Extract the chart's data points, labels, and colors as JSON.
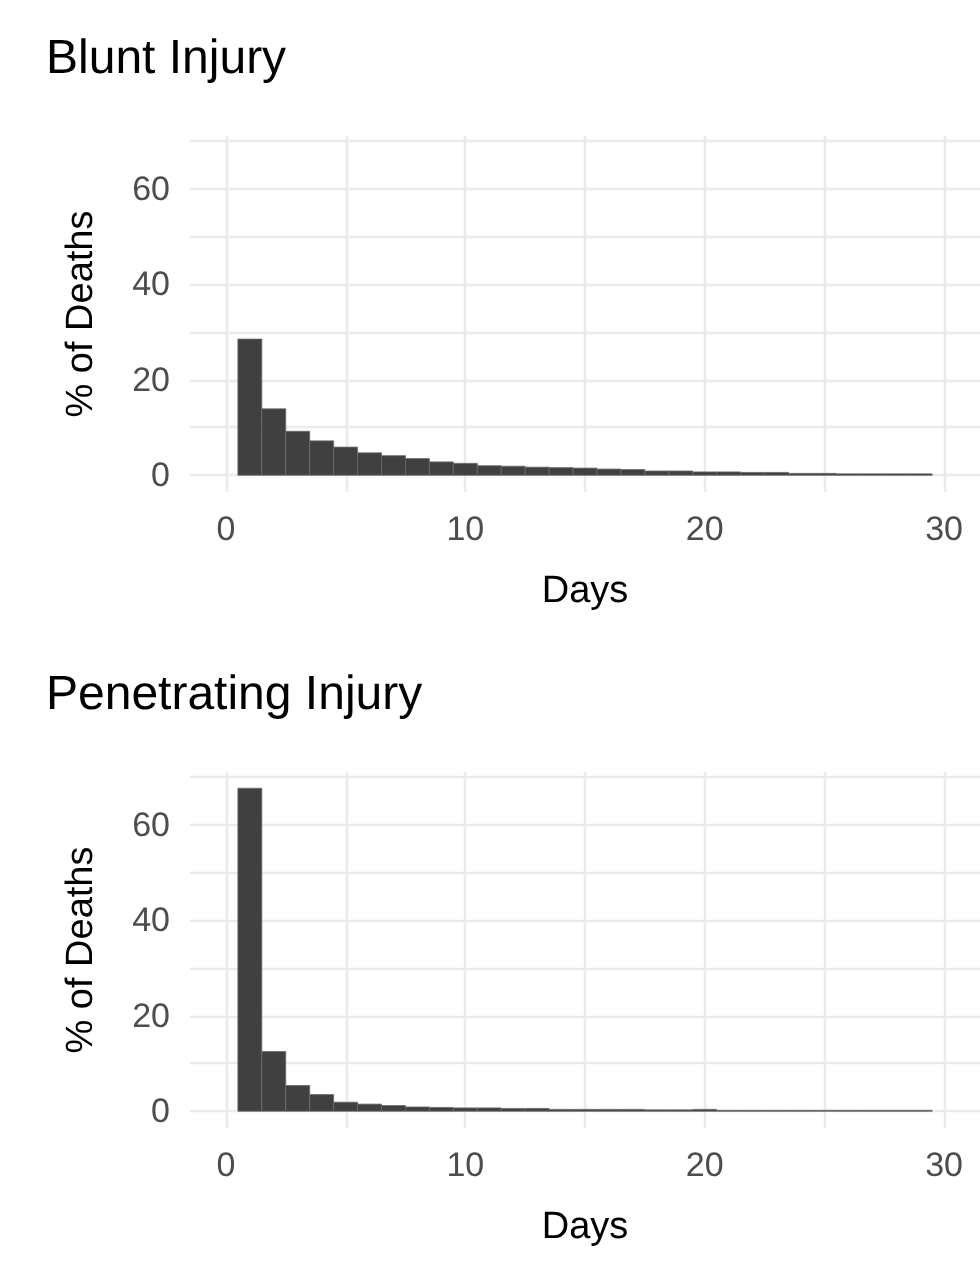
{
  "chart_data": [
    {
      "type": "histogram",
      "title": "Blunt Injury",
      "xlabel": "Days",
      "ylabel": "% of Deaths",
      "color": "#404040",
      "bins": [
        0.5,
        1.5,
        2.5,
        3.5,
        4.5,
        5.5,
        6.5,
        7.5,
        8.5,
        9.5,
        10.5,
        11.5,
        12.5,
        13.5,
        14.5,
        15.5,
        16.5,
        17.5,
        18.5,
        19.5,
        20.5,
        21.5,
        22.5,
        23.5,
        24.5,
        25.5,
        26.5,
        27.5,
        28.5,
        29.5
      ],
      "values": [
        28.5,
        13.9,
        9.2,
        7.2,
        5.9,
        4.7,
        4.1,
        3.5,
        2.8,
        2.5,
        2.0,
        1.9,
        1.7,
        1.6,
        1.5,
        1.3,
        1.2,
        0.9,
        0.9,
        0.7,
        0.7,
        0.6,
        0.6,
        0.4,
        0.4,
        0.3,
        0.3,
        0.3,
        0.3
      ],
      "xlim": [
        -1.5,
        31.5
      ],
      "ylim": [
        -3.5,
        71
      ],
      "xticks": [
        0,
        {
          "value": 5,
          "label": null
        },
        10,
        {
          "value": 15,
          "label": null
        },
        20,
        {
          "value": 25,
          "label": null
        },
        30
      ],
      "yticks": [
        0,
        {
          "value": 10,
          "label": null
        },
        20,
        {
          "value": 30,
          "label": null
        },
        40,
        {
          "value": 50,
          "label": null
        },
        60,
        {
          "value": 70,
          "label": null
        }
      ],
      "grid": true
    },
    {
      "type": "histogram",
      "title": "Penetrating Injury",
      "xlabel": "Days",
      "ylabel": "% of Deaths",
      "color": "#404040",
      "bins": [
        0.5,
        1.5,
        2.5,
        3.5,
        4.5,
        5.5,
        6.5,
        7.5,
        8.5,
        9.5,
        10.5,
        11.5,
        12.5,
        13.5,
        14.5,
        15.5,
        16.5,
        17.5,
        18.5,
        19.5,
        20.5,
        21.5,
        22.5,
        23.5,
        24.5,
        25.5,
        26.5,
        27.5,
        28.5,
        29.5
      ],
      "values": [
        67.6,
        12.5,
        5.4,
        3.5,
        1.9,
        1.5,
        1.2,
        0.9,
        0.8,
        0.7,
        0.7,
        0.6,
        0.6,
        0.4,
        0.4,
        0.4,
        0.4,
        0.3,
        0.3,
        0.4,
        0.2,
        0.2,
        0.2,
        0.2,
        0.2,
        0.2,
        0.2,
        0.2,
        0.2
      ],
      "xlim": [
        -1.5,
        31.5
      ],
      "ylim": [
        -3.5,
        71
      ],
      "xticks": [
        0,
        {
          "value": 5,
          "label": null
        },
        10,
        {
          "value": 15,
          "label": null
        },
        20,
        {
          "value": 25,
          "label": null
        },
        30
      ],
      "yticks": [
        0,
        {
          "value": 10,
          "label": null
        },
        20,
        {
          "value": 30,
          "label": null
        },
        40,
        {
          "value": 50,
          "label": null
        },
        60,
        {
          "value": 70,
          "label": null
        }
      ],
      "grid": true
    }
  ]
}
